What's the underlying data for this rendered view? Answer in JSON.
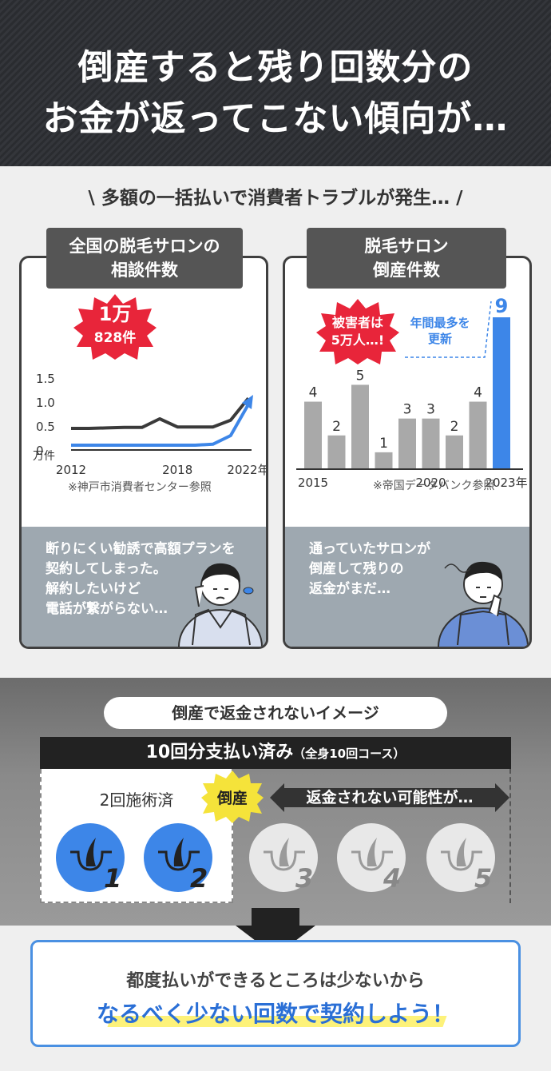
{
  "header": {
    "line1": "倒産すると残り回数分の",
    "line2": "お金が返ってこない傾向が…"
  },
  "subtitle": "\\ 多額の一括払いで消費者トラブルが発生… /",
  "left_card": {
    "tab_line1": "全国の脱毛サロンの",
    "tab_line2": "相談件数",
    "badge_line1": "1万",
    "badge_line2": "828件",
    "y_ticks": [
      "1.5",
      "1.0",
      "0.5",
      "0"
    ],
    "y_unit": "万件",
    "x_ticks": [
      "2012",
      "2018",
      "2022年"
    ],
    "source": "※神戸市消費者センター参照",
    "talk": [
      "断りにくい勧誘で高額プランを",
      "契約してしまった。",
      "解約したいけど",
      "電話が繋がらない…"
    ]
  },
  "right_card": {
    "tab_line1": "脱毛サロン",
    "tab_line2": "倒産件数",
    "badge_line1": "被害者は",
    "badge_line2": "5万人…!",
    "note_line1": "年間最多を",
    "note_line2": "更新",
    "x_ticks": [
      "2015",
      "2020",
      "2023年"
    ],
    "source": "※帝国データバンク参照",
    "talk": [
      "通っていたサロンが",
      "倒産して残りの",
      "返金がまだ…"
    ]
  },
  "chart_data": [
    {
      "type": "line",
      "x": [
        2012,
        2013,
        2014,
        2015,
        2016,
        2017,
        2018,
        2019,
        2020,
        2021,
        2022
      ],
      "series": [
        {
          "values": [
            0.45,
            0.45,
            0.46,
            0.47,
            0.47,
            0.65,
            0.48,
            0.48,
            0.48,
            0.62,
            1.08
          ]
        },
        {
          "values": [
            0.1,
            0.1,
            0.1,
            0.1,
            0.1,
            0.1,
            0.1,
            0.1,
            0.12,
            0.3,
            0.95
          ]
        }
      ],
      "ylim": [
        0,
        1.5
      ],
      "colors": [
        "#3a3a3a",
        "#3d86e8"
      ]
    },
    {
      "type": "bar",
      "categories": [
        "2015",
        "2016",
        "2017",
        "2018",
        "2019",
        "2020",
        "2021",
        "2022",
        "2023"
      ],
      "values": [
        4,
        2,
        5,
        1,
        3,
        3,
        2,
        4,
        9
      ],
      "colors": {
        "normal": "#a9a9a9",
        "highlight": "#3d86e8"
      }
    }
  ],
  "section2": {
    "pill": "倒産で返金されないイメージ",
    "bar_main": "10回分支払い済み",
    "bar_sub": "（全身10回コース）",
    "done_label": "2回施術済",
    "stamp": "倒産",
    "arrow_text": "返金されない可能性が…",
    "circles": [
      "1",
      "2",
      "3",
      "4",
      "5"
    ]
  },
  "bottom": {
    "line1": "都度払いができるところは少ないから",
    "line2": "なるべく少ない回数で契約しよう！"
  },
  "colors": {
    "blue": "#3d86e8",
    "red": "#e8253a",
    "dark": "#3f3f3f"
  }
}
